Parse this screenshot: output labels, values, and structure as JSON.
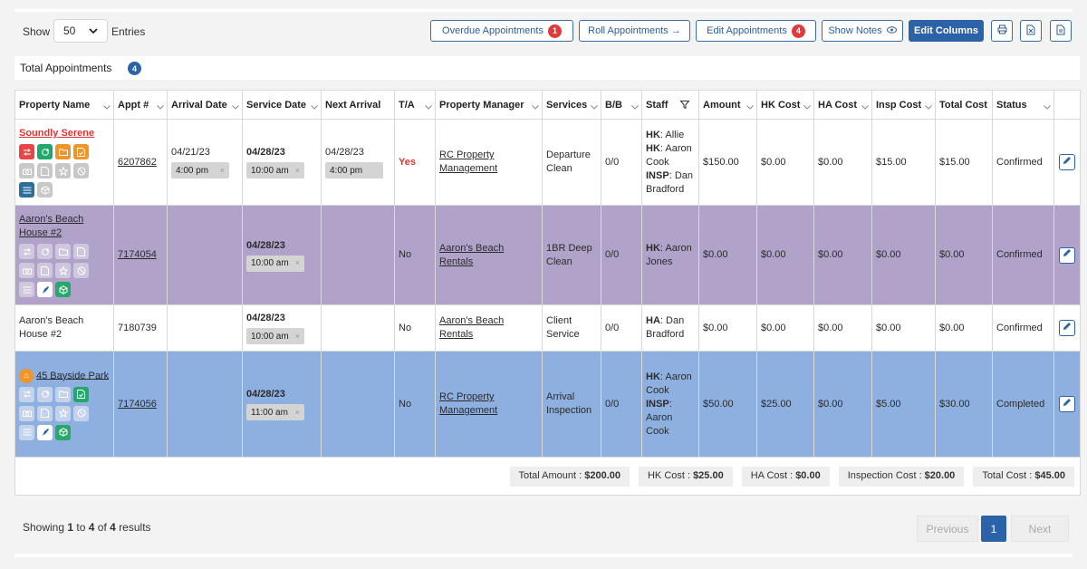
{
  "toolbar": {
    "show_label": "Show",
    "entries_value": "50",
    "entries_label": "Entries",
    "overdue_label": "Overdue Appointments",
    "overdue_count": "1",
    "roll_label": "Roll Appointments →",
    "edit_appts_label": "Edit Appointments",
    "edit_appts_count": "4",
    "show_notes_label": "Show Notes",
    "edit_columns_label": "Edit Columns"
  },
  "total_appointments": {
    "label": "Total Appointments",
    "count": "4"
  },
  "columns": [
    "Property Name",
    "Appt #",
    "Arrival Date",
    "Service Date",
    "Next Arrival",
    "T/A",
    "Property Manager",
    "Services",
    "B/B",
    "Staff",
    "Amount",
    "HK Cost",
    "HA Cost",
    "Insp Cost",
    "Total Cost",
    "Status"
  ],
  "rows": [
    {
      "property": "Soundly Serene",
      "appt": "6207862",
      "arrival_date": "04/21/23",
      "arrival_time": "4:00 pm",
      "service_date": "04/28/23",
      "service_time": "10:00 am",
      "next_arrival_date": "04/28/23",
      "next_arrival_time": "4:00 pm",
      "ta": "Yes",
      "manager": "RC Property Management",
      "services": "Departure Clean",
      "bb": "0/0",
      "staff": [
        {
          "role": "HK",
          "name": "Allie"
        },
        {
          "role": "HK",
          "name": "Aaron Cook"
        },
        {
          "role": "INSP",
          "name": "Dan Bradford"
        }
      ],
      "amount": "$150.00",
      "hk_cost": "$0.00",
      "ha_cost": "$0.00",
      "insp_cost": "$15.00",
      "total_cost": "$15.00",
      "status": "Confirmed"
    },
    {
      "property": "Aaron's Beach House #2",
      "appt": "7174054",
      "service_date": "04/28/23",
      "service_time": "10:00 am",
      "ta": "No",
      "manager": "Aaron's Beach Rentals",
      "services": "1BR Deep Clean",
      "bb": "0/0",
      "staff": [
        {
          "role": "HK",
          "name": "Aaron Jones"
        }
      ],
      "amount": "$0.00",
      "hk_cost": "$0.00",
      "ha_cost": "$0.00",
      "insp_cost": "$0.00",
      "total_cost": "$0.00",
      "status": "Confirmed"
    },
    {
      "property": "Aaron's Beach House #2",
      "appt": "7180739",
      "service_date": "04/28/23",
      "service_time": "10:00 am",
      "ta": "No",
      "manager": "Aaron's Beach Rentals",
      "services": "Client Service",
      "bb": "0/0",
      "staff": [
        {
          "role": "HA",
          "name": "Dan Bradford"
        }
      ],
      "amount": "$0.00",
      "hk_cost": "$0.00",
      "ha_cost": "$0.00",
      "insp_cost": "$0.00",
      "total_cost": "$0.00",
      "status": "Confirmed"
    },
    {
      "property": "45 Bayside Park",
      "appt": "7174056",
      "service_date": "04/28/23",
      "service_time": "11:00 am",
      "ta": "No",
      "manager": "RC Property Management",
      "services": "Arrival Inspection",
      "bb": "0/0",
      "staff": [
        {
          "role": "HK",
          "name": "Aaron Cook"
        },
        {
          "role": "INSP",
          "name": "Aaron Cook"
        }
      ],
      "amount": "$50.00",
      "hk_cost": "$25.00",
      "ha_cost": "$0.00",
      "insp_cost": "$5.00",
      "total_cost": "$30.00",
      "status": "Completed"
    }
  ],
  "totals": {
    "amount_label": "Total Amount :",
    "amount": "$200.00",
    "hk_label": "HK Cost :",
    "hk": "$25.00",
    "ha_label": "HA Cost :",
    "ha": "$0.00",
    "insp_label": "Inspection Cost :",
    "insp": "$20.00",
    "total_label": "Total Cost :",
    "total": "$45.00"
  },
  "footer": {
    "showing_prefix": "Showing",
    "from": "1",
    "to_word": "to",
    "to": "4",
    "of_word": "of",
    "total": "4",
    "results_word": "results",
    "prev_label": "Previous",
    "page": "1",
    "next_label": "Next"
  },
  "colors": {
    "accent": "#2c62a8",
    "danger": "#e03535",
    "row_purple": "#b1a2ca",
    "row_blue": "#8db0e0"
  }
}
